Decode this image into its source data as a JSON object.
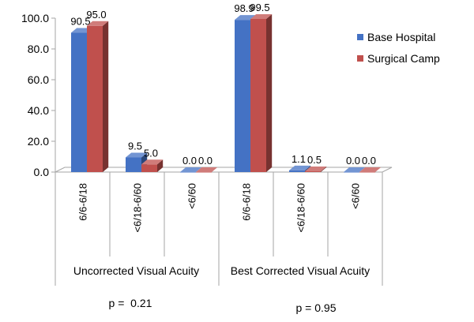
{
  "chart_data": {
    "type": "bar",
    "categories": [
      "6/6-6/18",
      "<6/18-6/60",
      "<6/60",
      "6/6-6/18",
      "<6/18-6/60",
      "<6/60"
    ],
    "groups": [
      {
        "label": "Uncorrected Visual Acuity",
        "p_value": "p =  0.21"
      },
      {
        "label": "Best Corrected Visual Acuity",
        "p_value": "p = 0.95"
      }
    ],
    "series": [
      {
        "name": "Base Hospital",
        "color": "#4472C4",
        "values": [
          90.5,
          9.5,
          0.0,
          98.9,
          1.1,
          0.0
        ],
        "labels": [
          "90.5",
          "9.5",
          "0.0",
          "98.9",
          "1.1",
          "0.0"
        ]
      },
      {
        "name": "Surgical Camp",
        "color": "#C0504D",
        "values": [
          95.0,
          5.0,
          0.0,
          99.5,
          0.5,
          0.0
        ],
        "labels": [
          "95.0",
          "5.0",
          "0.0",
          "99.5",
          "0.5",
          "0.0"
        ]
      }
    ],
    "ylim": [
      0,
      100
    ],
    "yticks": [
      "0.0",
      "20.0",
      "40.0",
      "60.0",
      "80.0",
      "100.0"
    ],
    "grid": false,
    "legend_position": "right",
    "style": "3d-clustered"
  }
}
